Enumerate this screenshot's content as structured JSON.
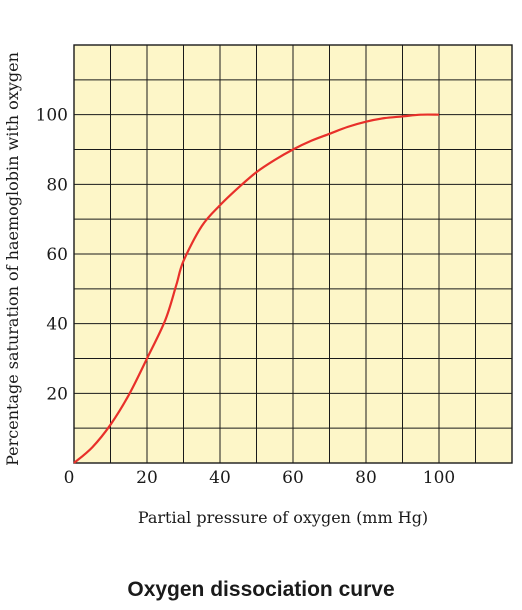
{
  "caption": "Oxygen dissociation curve",
  "chart_data": {
    "type": "line",
    "xlabel": "Partial pressure of oxygen (mm Hg)",
    "ylabel": "Percentage saturation of haemoglobin with oxygen",
    "xlim": [
      0,
      120
    ],
    "ylim": [
      0,
      120
    ],
    "x_ticks": [
      0,
      20,
      40,
      60,
      80,
      100
    ],
    "x_tick_labels": [
      "0",
      "20",
      "40",
      "60",
      "80",
      "100"
    ],
    "y_ticks": [
      20,
      40,
      60,
      80,
      100
    ],
    "y_tick_labels": [
      "20",
      "40",
      "60",
      "80",
      "100"
    ],
    "grid": true,
    "grid_step": 10,
    "plot_background": "#fdf6c8",
    "grid_color": "#1a1a1a",
    "series": [
      {
        "color": "#e8302a",
        "x": [
          0,
          5,
          10,
          15,
          20,
          25,
          28,
          30,
          35,
          40,
          45,
          50,
          55,
          60,
          65,
          70,
          75,
          80,
          85,
          90,
          95,
          100
        ],
        "y": [
          0,
          4.5,
          11,
          19.5,
          30,
          41,
          51,
          58,
          68,
          74,
          79,
          83.5,
          87,
          90,
          92.5,
          94.5,
          96.5,
          98,
          99,
          99.5,
          100,
          100
        ]
      }
    ]
  }
}
